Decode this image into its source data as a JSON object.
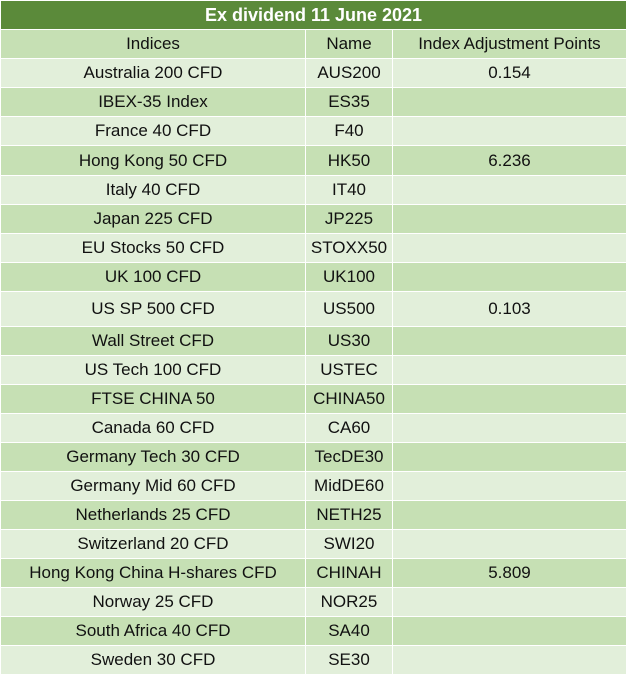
{
  "title": "Ex dividend 11 June 2021",
  "headers": [
    "Indices",
    "Name",
    "Index Adjustment Points"
  ],
  "rows": [
    [
      "Australia 200 CFD",
      "AUS200",
      "0.154"
    ],
    [
      "IBEX-35 Index",
      "ES35",
      ""
    ],
    [
      "France 40 CFD",
      "F40",
      ""
    ],
    [
      "Hong Kong 50 CFD",
      "HK50",
      "6.236"
    ],
    [
      "Italy 40 CFD",
      "IT40",
      ""
    ],
    [
      "Japan 225 CFD",
      "JP225",
      ""
    ],
    [
      "EU Stocks 50 CFD",
      "STOXX50",
      ""
    ],
    [
      "UK 100 CFD",
      "UK100",
      ""
    ],
    [
      "US SP 500 CFD",
      "US500",
      "0.103"
    ],
    [
      "Wall Street CFD",
      "US30",
      ""
    ],
    [
      "US Tech 100 CFD",
      "USTEC",
      ""
    ],
    [
      "FTSE CHINA 50",
      "CHINA50",
      ""
    ],
    [
      "Canada 60 CFD",
      "CA60",
      ""
    ],
    [
      "Germany Tech 30 CFD",
      "TecDE30",
      ""
    ],
    [
      "Germany Mid 60 CFD",
      "MidDE60",
      ""
    ],
    [
      "Netherlands 25 CFD",
      "NETH25",
      ""
    ],
    [
      "Switzerland 20 CFD",
      "SWI20",
      ""
    ],
    [
      "Hong Kong China H-shares CFD",
      "CHINAH",
      "5.809"
    ],
    [
      "Norway 25 CFD",
      "NOR25",
      ""
    ],
    [
      "South Africa 40 CFD",
      "SA40",
      ""
    ],
    [
      "Sweden 30 CFD",
      "SE30",
      ""
    ]
  ],
  "colors": {
    "title_bg": "#5b8a3a",
    "row_light": "#e2efda",
    "row_dark": "#c6e0b4"
  }
}
